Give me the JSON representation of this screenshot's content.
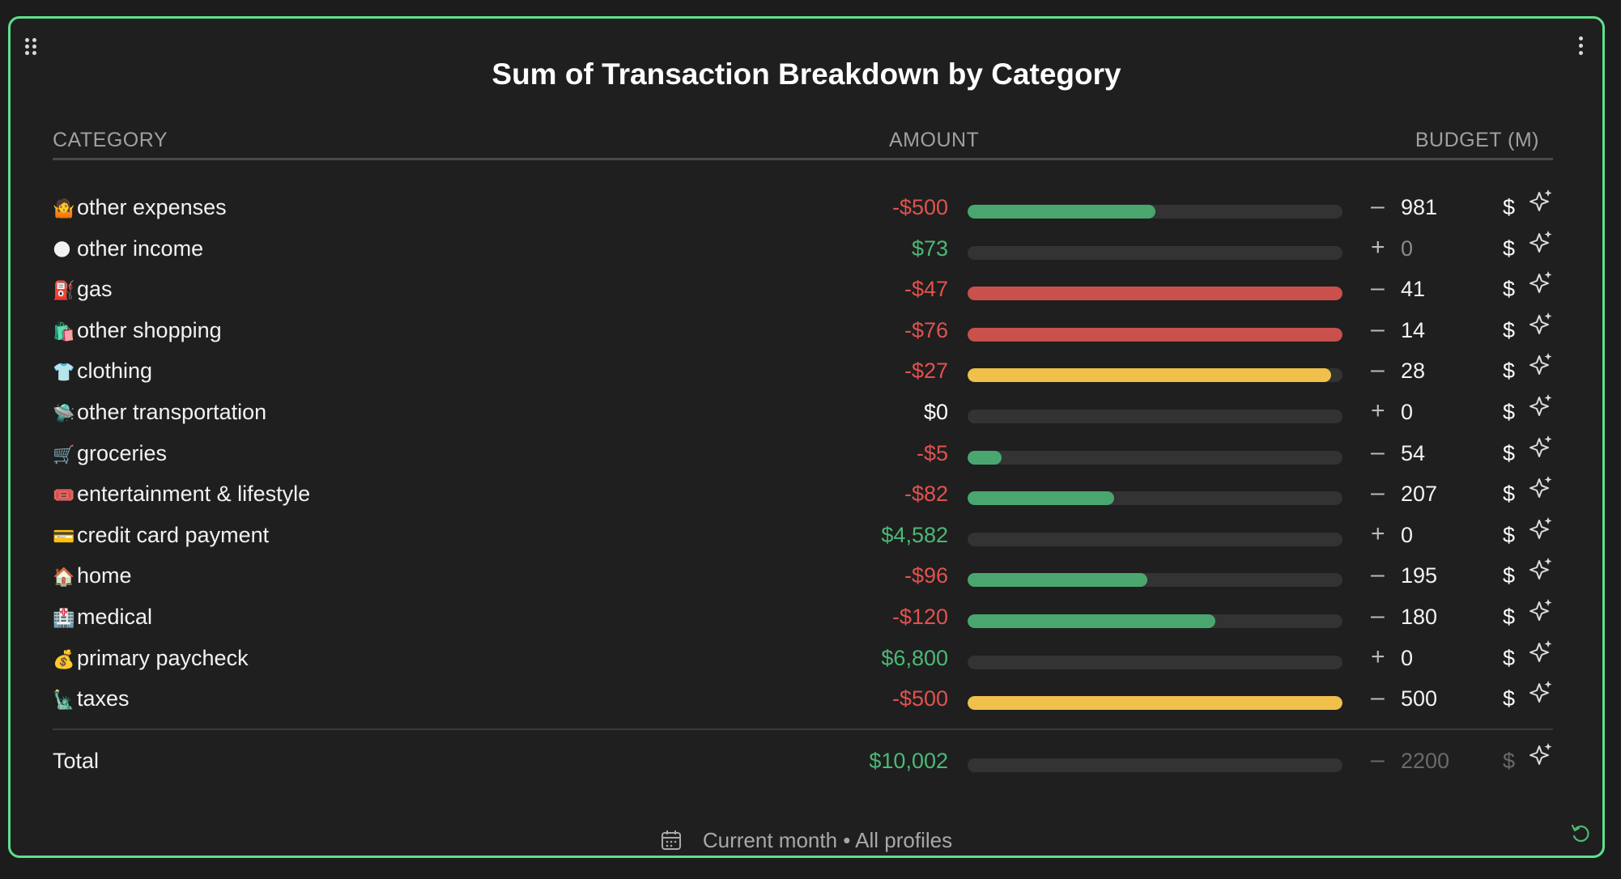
{
  "widget": {
    "title": "Sum of Transaction Breakdown by Category",
    "headers": {
      "category": "CATEGORY",
      "amount": "AMOUNT",
      "budget": "BUDGET (M)"
    },
    "colors": {
      "accent_border": "#5ee08c",
      "negative": "#e0524f",
      "positive": "#4cb876",
      "bar_green": "#4aa66f",
      "bar_red": "#c9504c",
      "bar_yellow": "#f0c04a",
      "track": "#333333"
    },
    "rows": [
      {
        "emoji": "🤷",
        "icon": "shrug-emoji-icon",
        "label": "other expenses",
        "amount": "-$500",
        "amount_kind": "neg",
        "progress": 0.5,
        "bar_color": "#4aa66f",
        "sign": "–",
        "budget": "981",
        "currency": "$"
      },
      {
        "emoji": "🌑",
        "icon": "globe-emoji-icon",
        "label": "other income",
        "amount": "$73",
        "amount_kind": "pos",
        "progress": 0,
        "bar_color": "#4aa66f",
        "sign": "+",
        "budget": "0",
        "budget_dim": true,
        "currency": "$"
      },
      {
        "emoji": "⛽",
        "icon": "fuel-pump-emoji-icon",
        "label": "gas",
        "amount": "-$47",
        "amount_kind": "neg",
        "progress": 1,
        "bar_color": "#c9504c",
        "sign": "–",
        "budget": "41",
        "currency": "$"
      },
      {
        "emoji": "🛍️",
        "icon": "shopping-bags-emoji-icon",
        "label": "other shopping",
        "amount": "-$76",
        "amount_kind": "neg",
        "progress": 1,
        "bar_color": "#c9504c",
        "sign": "–",
        "budget": "14",
        "currency": "$"
      },
      {
        "emoji": "👕",
        "icon": "tshirt-emoji-icon",
        "label": "clothing",
        "amount": "-$27",
        "amount_kind": "neg",
        "progress": 0.97,
        "bar_color": "#f0c04a",
        "sign": "–",
        "budget": "28",
        "currency": "$"
      },
      {
        "emoji": "🛸",
        "icon": "ufo-emoji-icon",
        "label": "other transportation",
        "amount": "$0",
        "amount_kind": "zero",
        "progress": 0,
        "bar_color": "#4aa66f",
        "sign": "+",
        "budget": "0",
        "currency": "$"
      },
      {
        "emoji": "🛒",
        "icon": "shopping-cart-emoji-icon",
        "label": "groceries",
        "amount": "-$5",
        "amount_kind": "neg",
        "progress": 0.09,
        "bar_color": "#4aa66f",
        "sign": "–",
        "budget": "54",
        "currency": "$"
      },
      {
        "emoji": "🎟️",
        "icon": "ticket-emoji-icon",
        "label": "entertainment & lifestyle",
        "amount": "-$82",
        "amount_kind": "neg",
        "progress": 0.39,
        "bar_color": "#4aa66f",
        "sign": "–",
        "budget": "207",
        "currency": "$"
      },
      {
        "emoji": "💳",
        "icon": "credit-card-emoji-icon",
        "label": "credit card payment",
        "amount": "$4,582",
        "amount_kind": "pos",
        "progress": 0,
        "bar_color": "#4aa66f",
        "sign": "+",
        "budget": "0",
        "currency": "$"
      },
      {
        "emoji": "🏠",
        "icon": "house-emoji-icon",
        "label": "home",
        "amount": "-$96",
        "amount_kind": "neg",
        "progress": 0.48,
        "bar_color": "#4aa66f",
        "sign": "–",
        "budget": "195",
        "currency": "$"
      },
      {
        "emoji": "🏥",
        "icon": "hospital-emoji-icon",
        "label": "medical",
        "amount": "-$120",
        "amount_kind": "neg",
        "progress": 0.66,
        "bar_color": "#4aa66f",
        "sign": "–",
        "budget": "180",
        "currency": "$"
      },
      {
        "emoji": "💰",
        "icon": "money-bag-emoji-icon",
        "label": "primary paycheck",
        "amount": "$6,800",
        "amount_kind": "pos",
        "progress": 0,
        "bar_color": "#4aa66f",
        "sign": "+",
        "budget": "0",
        "currency": "$"
      },
      {
        "emoji": "🗽",
        "icon": "statue-of-liberty-emoji-icon",
        "label": "taxes",
        "amount": "-$500",
        "amount_kind": "neg",
        "progress": 1,
        "bar_color": "#f0c04a",
        "sign": "–",
        "budget": "500",
        "currency": "$"
      }
    ],
    "total": {
      "label": "Total",
      "amount": "$10,002",
      "amount_kind": "pos",
      "progress": 0,
      "sign": "–",
      "budget": "2200",
      "currency": "$"
    },
    "footer": {
      "text": "Current month • All profiles"
    }
  }
}
